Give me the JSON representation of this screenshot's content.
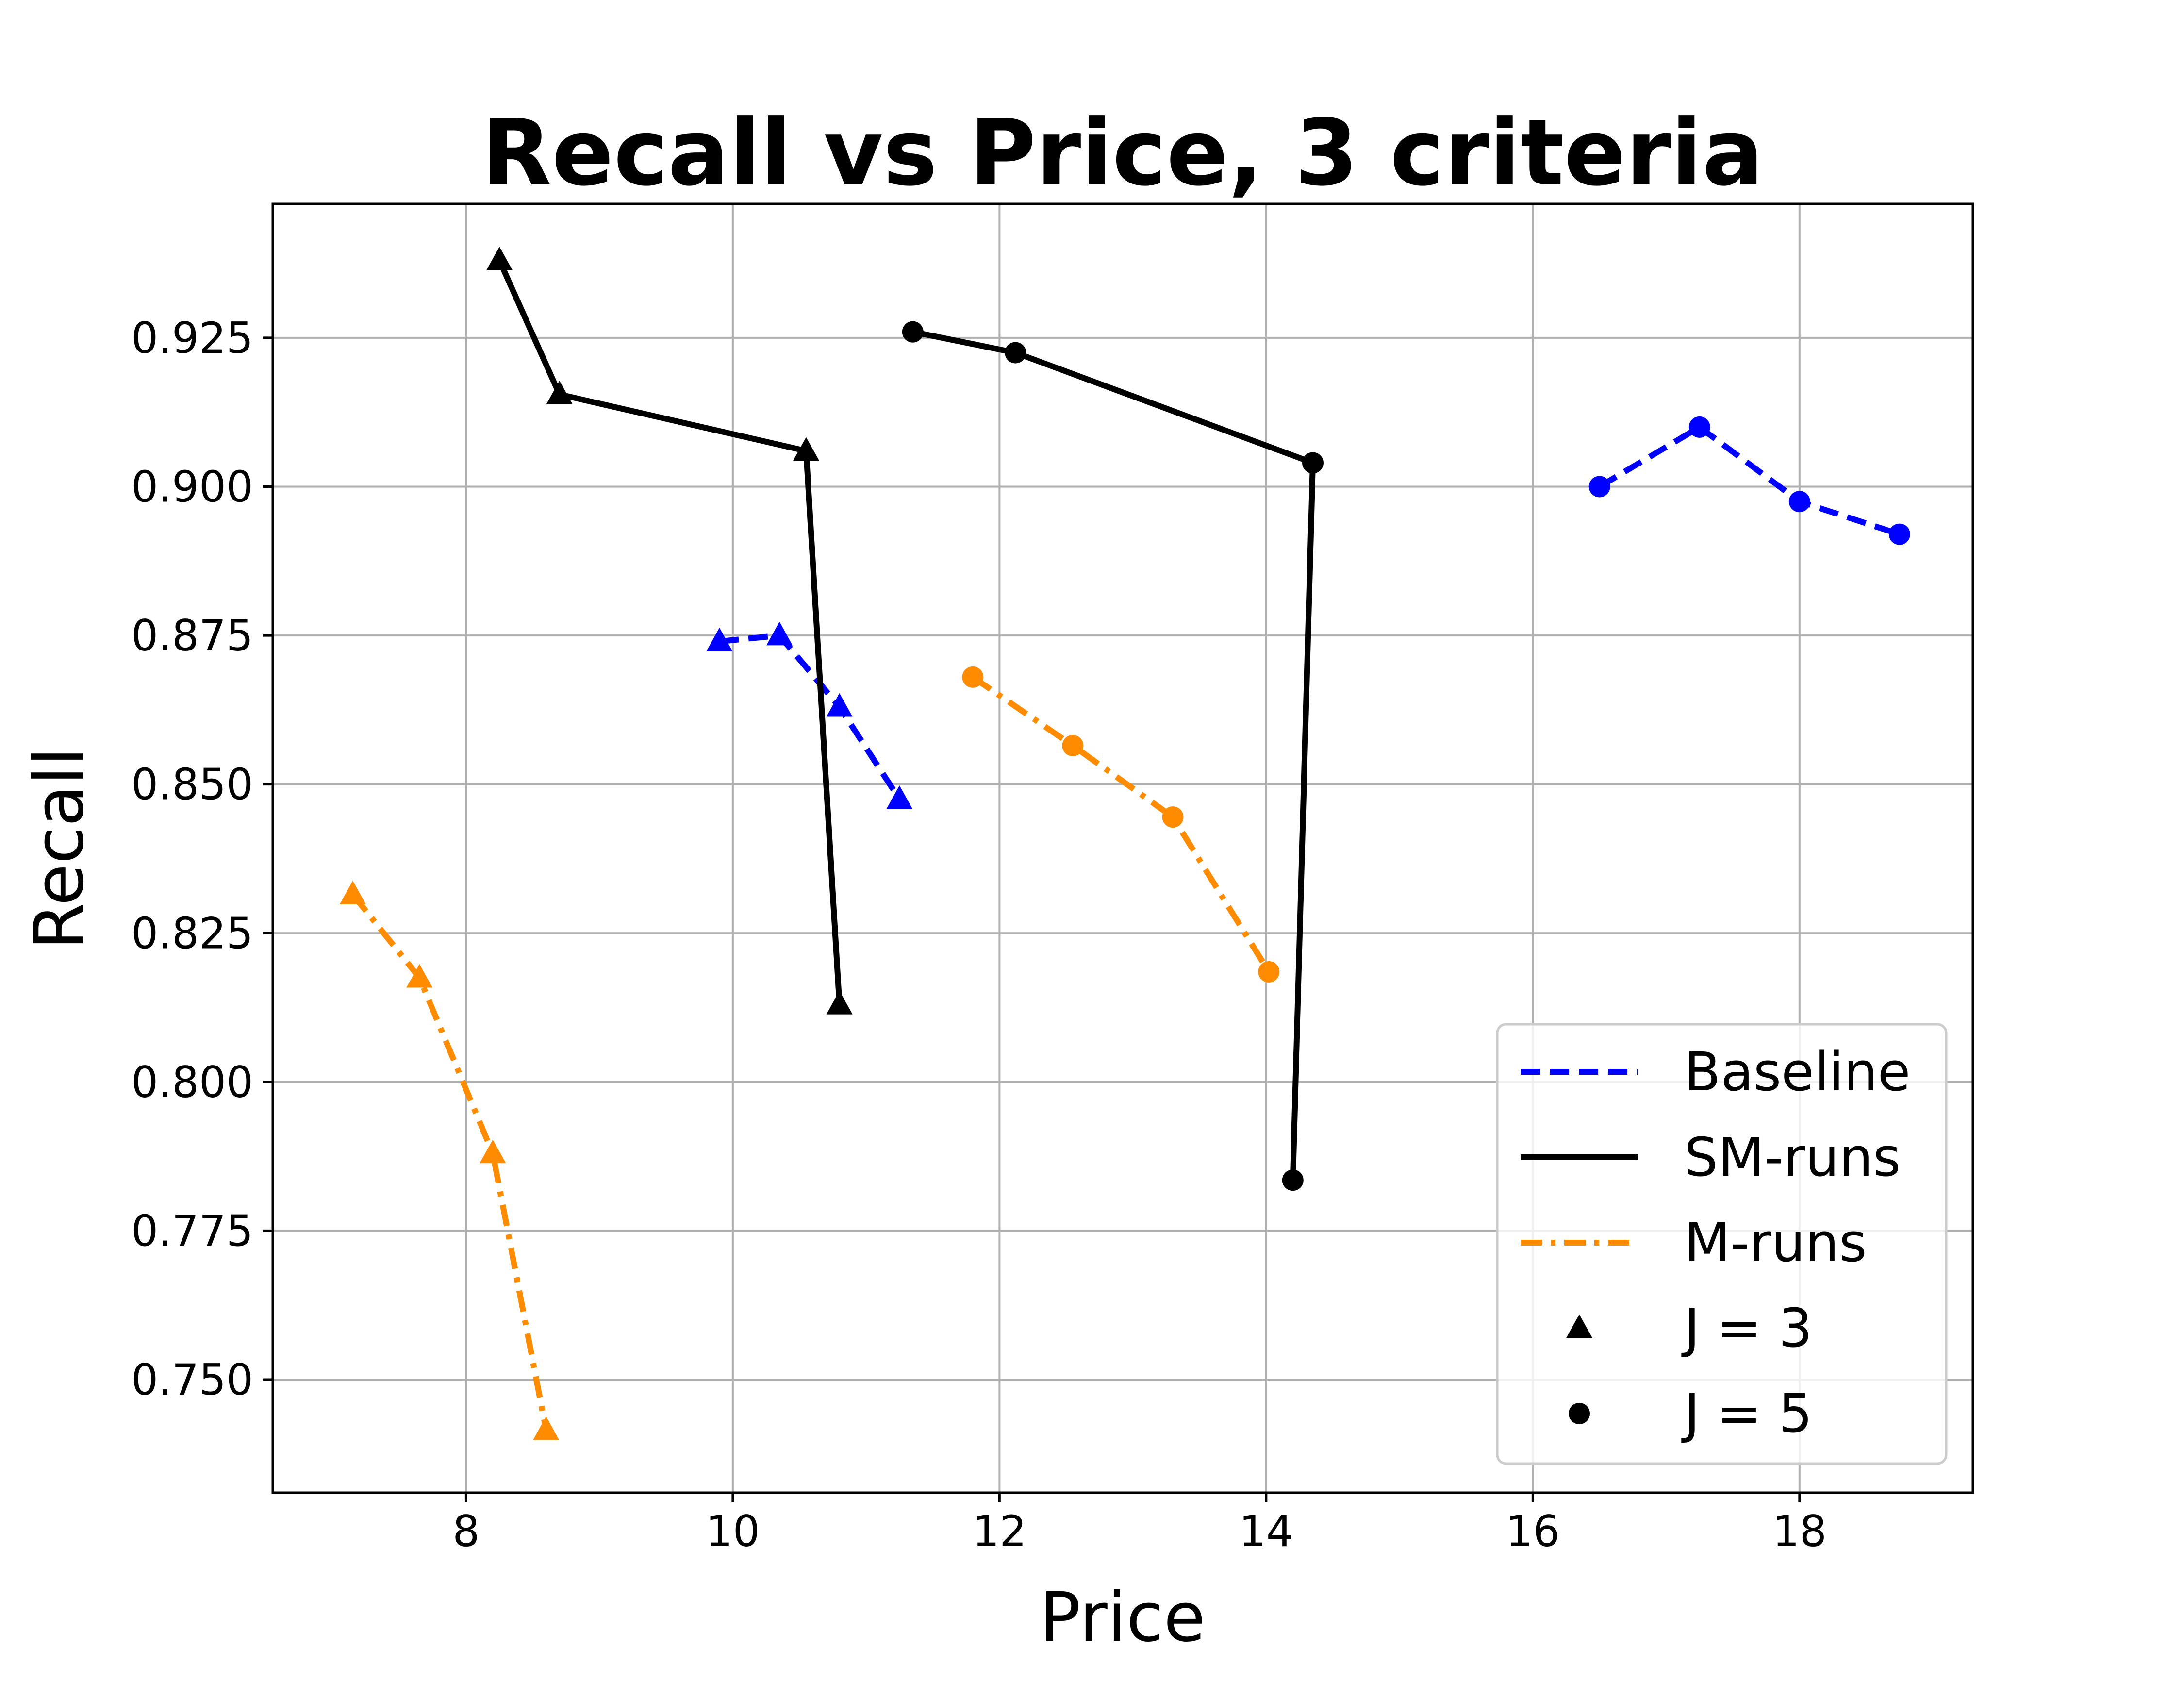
{
  "chart_data": {
    "type": "line",
    "title": "Recall vs Price, 3 criteria",
    "xlabel": "Price",
    "ylabel": "Recall",
    "xlim": [
      6.55,
      19.3
    ],
    "ylim": [
      0.731,
      0.9475
    ],
    "xticks": [
      8,
      10,
      12,
      14,
      16,
      18
    ],
    "yticks": [
      0.75,
      0.775,
      0.8,
      0.825,
      0.85,
      0.875,
      0.9,
      0.925
    ],
    "grid": true,
    "legend_position": "lower-right",
    "series": [
      {
        "name": "Baseline",
        "group": "J = 3",
        "style": "dashed",
        "marker": "triangle",
        "color": "#0000ff",
        "x": [
          9.9,
          10.35,
          10.8,
          11.25
        ],
        "y": [
          0.874,
          0.875,
          0.863,
          0.8475
        ]
      },
      {
        "name": "Baseline",
        "group": "J = 5",
        "style": "dashed",
        "marker": "circle",
        "color": "#0000ff",
        "x": [
          16.5,
          17.25,
          18.0,
          18.75
        ],
        "y": [
          0.9,
          0.91,
          0.8975,
          0.892
        ]
      },
      {
        "name": "SM-runs",
        "group": "J = 3",
        "style": "solid",
        "marker": "triangle",
        "color": "#000000",
        "x": [
          8.25,
          8.7,
          10.55,
          10.8
        ],
        "y": [
          0.938,
          0.9155,
          0.906,
          0.813
        ]
      },
      {
        "name": "SM-runs",
        "group": "J = 5",
        "style": "solid",
        "marker": "circle",
        "color": "#000000",
        "x": [
          11.35,
          12.12,
          14.35,
          14.2
        ],
        "y": [
          0.926,
          0.9225,
          0.904,
          0.7835
        ]
      },
      {
        "name": "M-runs",
        "group": "J = 3",
        "style": "dashdot",
        "marker": "triangle",
        "color": "#ff8c00",
        "x": [
          7.15,
          7.65,
          8.2,
          8.6
        ],
        "y": [
          0.8315,
          0.8175,
          0.788,
          0.7415
        ]
      },
      {
        "name": "M-runs",
        "group": "J = 5",
        "style": "dashdot",
        "marker": "circle",
        "color": "#ff8c00",
        "x": [
          11.8,
          12.55,
          13.3,
          14.02
        ],
        "y": [
          0.868,
          0.8565,
          0.8445,
          0.8185
        ]
      }
    ],
    "legend": [
      {
        "label": "Baseline",
        "kind": "line",
        "style": "dashed",
        "color": "#0000ff"
      },
      {
        "label": "SM-runs",
        "kind": "line",
        "style": "solid",
        "color": "#000000"
      },
      {
        "label": "M-runs",
        "kind": "line",
        "style": "dashdot",
        "color": "#ff8c00"
      },
      {
        "label": "J = 3",
        "kind": "marker",
        "marker": "triangle",
        "color": "#000000"
      },
      {
        "label": "J = 5",
        "kind": "marker",
        "marker": "circle",
        "color": "#000000"
      }
    ]
  }
}
